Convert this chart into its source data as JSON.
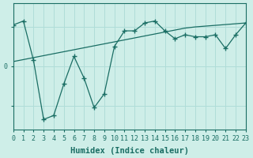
{
  "xlabel": "Humidex (Indice chaleur)",
  "bg_color": "#ceeee8",
  "line_color": "#1a6e64",
  "grid_color": "#b0ddd8",
  "x_min": 0,
  "x_max": 23,
  "y_min": -1.6,
  "y_max": 1.6,
  "line_straight_x": [
    0,
    1,
    2,
    3,
    4,
    5,
    6,
    7,
    8,
    9,
    10,
    11,
    12,
    13,
    14,
    15,
    16,
    17,
    18,
    19,
    20,
    21,
    22,
    23
  ],
  "line_straight_y": [
    0.12,
    0.17,
    0.22,
    0.27,
    0.32,
    0.37,
    0.42,
    0.47,
    0.52,
    0.57,
    0.62,
    0.67,
    0.72,
    0.77,
    0.82,
    0.87,
    0.92,
    0.97,
    1.0,
    1.02,
    1.04,
    1.06,
    1.08,
    1.1
  ],
  "line_volatile_x": [
    0,
    1,
    2,
    3,
    4,
    5,
    6,
    7,
    8,
    9,
    10,
    11,
    12,
    13,
    14,
    15,
    16,
    17,
    18,
    19,
    20,
    21,
    22,
    23
  ],
  "line_volatile_y": [
    1.05,
    1.15,
    0.15,
    -1.35,
    -1.25,
    -0.45,
    0.25,
    -0.3,
    -1.05,
    -0.7,
    0.5,
    0.9,
    0.9,
    1.1,
    1.15,
    0.9,
    0.7,
    0.8,
    0.75,
    0.75,
    0.8,
    0.45,
    0.8,
    1.1
  ],
  "tick_fontsize": 6,
  "xlabel_fontsize": 7.5
}
